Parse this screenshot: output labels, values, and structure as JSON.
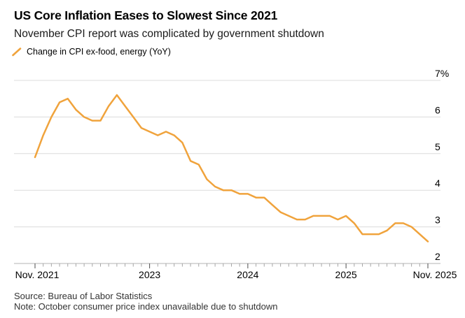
{
  "header": {
    "title": "US Core Inflation Eases to Slowest Since 2021",
    "subtitle": "November CPI report was complicated by government shutdown"
  },
  "legend": {
    "label": "Change in CPI ex-food, energy (YoY)",
    "marker_color": "#F0A33C"
  },
  "chart_data": {
    "type": "line",
    "title": "US Core Inflation Eases to Slowest Since 2021",
    "subtitle": "November CPI report was complicated by government shutdown",
    "grid": "horizontal",
    "legend_position": "top-left",
    "y_axis_side": "right",
    "ylim": [
      2,
      7
    ],
    "y_ticks": [
      7,
      6,
      5,
      4,
      3,
      2
    ],
    "y_tick_labels": [
      "7%",
      "6",
      "5",
      "4",
      "3",
      "2"
    ],
    "x_ticks": [
      {
        "index": 0,
        "label": "Nov. 2021"
      },
      {
        "index": 14,
        "label": "2023"
      },
      {
        "index": 26,
        "label": "2024"
      },
      {
        "index": 38,
        "label": "2025"
      },
      {
        "index": 48,
        "label": "Nov. 2025"
      }
    ],
    "series": [
      {
        "name": "Change in CPI ex-food, energy (YoY)",
        "color": "#F0A33C",
        "x": [
          "2021-11",
          "2021-12",
          "2022-01",
          "2022-02",
          "2022-03",
          "2022-04",
          "2022-05",
          "2022-06",
          "2022-07",
          "2022-08",
          "2022-09",
          "2022-10",
          "2022-11",
          "2022-12",
          "2023-01",
          "2023-02",
          "2023-03",
          "2023-04",
          "2023-05",
          "2023-06",
          "2023-07",
          "2023-08",
          "2023-09",
          "2023-10",
          "2023-11",
          "2023-12",
          "2024-01",
          "2024-02",
          "2024-03",
          "2024-04",
          "2024-05",
          "2024-06",
          "2024-07",
          "2024-08",
          "2024-09",
          "2024-10",
          "2024-11",
          "2024-12",
          "2025-01",
          "2025-02",
          "2025-03",
          "2025-04",
          "2025-05",
          "2025-06",
          "2025-07",
          "2025-08",
          "2025-09",
          "2025-10",
          "2025-11"
        ],
        "values": [
          4.9,
          5.5,
          6.0,
          6.4,
          6.5,
          6.2,
          6.0,
          5.9,
          5.9,
          6.3,
          6.6,
          6.3,
          6.0,
          5.7,
          5.6,
          5.5,
          5.6,
          5.5,
          5.3,
          4.8,
          4.7,
          4.3,
          4.1,
          4.0,
          4.0,
          3.9,
          3.9,
          3.8,
          3.8,
          3.6,
          3.4,
          3.3,
          3.2,
          3.2,
          3.3,
          3.3,
          3.3,
          3.2,
          3.3,
          3.1,
          2.8,
          2.8,
          2.8,
          2.9,
          3.1,
          3.1,
          3.0,
          null,
          2.6
        ]
      }
    ],
    "missing_data_note": "2025-10 value missing (line connects Sep. 2025 to Nov. 2025)"
  },
  "footer": {
    "source": "Source: Bureau of Labor Statistics",
    "note": "Note: October consumer price index unavailable due to shutdown"
  },
  "colors": {
    "line": "#F0A33C",
    "gridline": "#DCDCDC",
    "axis_baseline": "#B3B3B3",
    "minor_tick": "#A6A6A6",
    "major_tick": "#4D4D4D",
    "title_text": "#000000",
    "footer_text": "#333333"
  }
}
